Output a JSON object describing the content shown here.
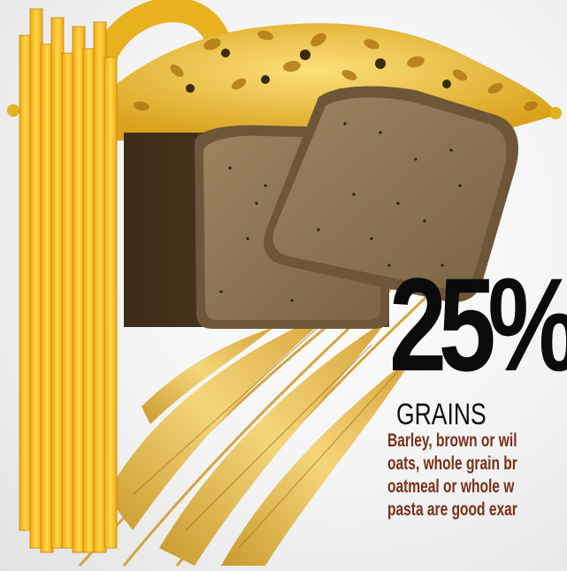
{
  "stat": {
    "percent": "25%",
    "category": "GRAINS",
    "description_lines": [
      "Barley, brown or wil",
      "oats, whole grain br",
      "oatmeal or whole w",
      "pasta are good exar"
    ]
  },
  "illustration": {
    "items": [
      "spaghetti-icon",
      "grain-pile-icon",
      "bread-slices-icon",
      "wheat-stalks-icon",
      "pretzel-icon"
    ],
    "colors": {
      "pasta": "#f7c21b",
      "grain": "#e0b21e",
      "bread_crust": "#4a3720",
      "bread_crumb": "#8c7450",
      "wheat": "#e9b43a",
      "text": "#0b0b0b",
      "description": "#7a2f18"
    }
  }
}
